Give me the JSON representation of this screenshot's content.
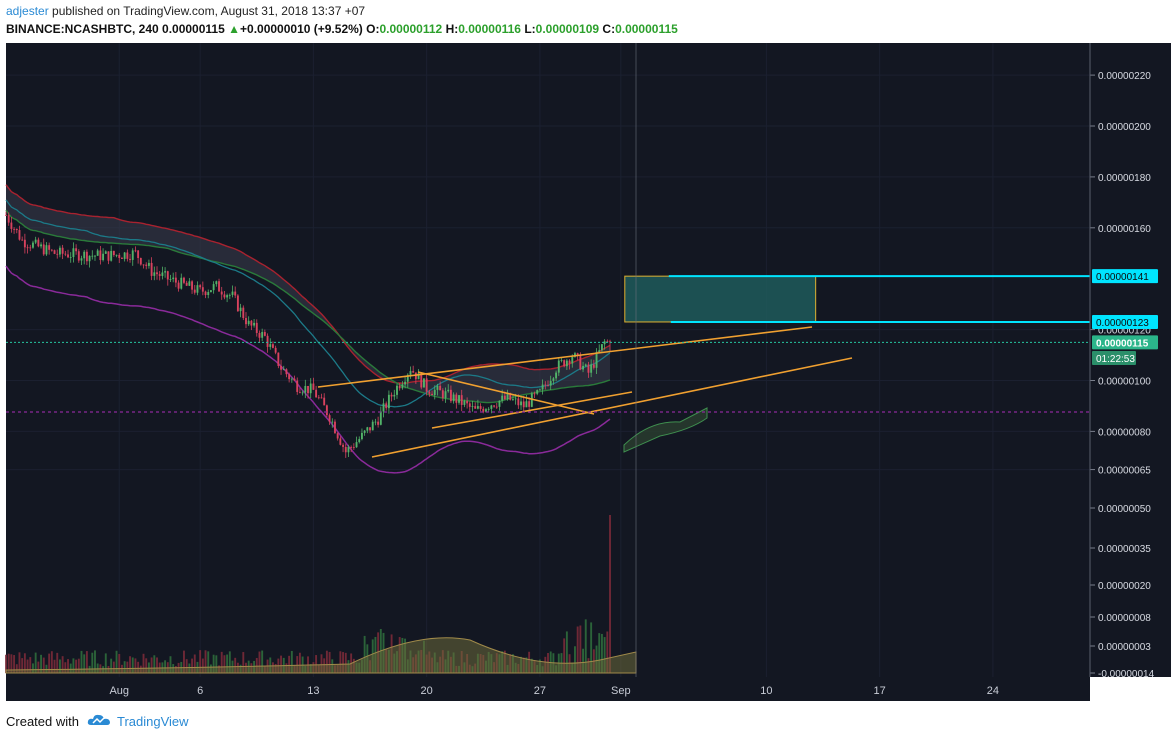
{
  "header": {
    "user": "adjester",
    "published": " published on TradingView.com, August 31, 2018 13:37 +07",
    "symbol": "BINANCE:NCASHBTC, 240",
    "last": "0.00000115",
    "change": "+0.00000010 (+9.52%)",
    "open_label": "O:",
    "open": "0.00000112",
    "high_label": "H:",
    "high": "0.00000116",
    "low_label": "L:",
    "low": "0.00000109",
    "close_label": "C:",
    "close": "0.00000115"
  },
  "footer": {
    "created": "Created with",
    "brand": "TradingView",
    "logo_icon": "tradingview-cloud-icon"
  },
  "colors": {
    "bg": "#131722",
    "up": "#3f8f4f",
    "down": "#d8425e",
    "orange": "#f0a030",
    "cyan": "#00e5ff",
    "teal": "#1e5a5a",
    "purple": "#8a2a9a"
  },
  "chart_data": {
    "type": "candlestick",
    "title": "",
    "x_ticks": [
      "Aug",
      "6",
      "13",
      "20",
      "27",
      "Sep",
      "10",
      "17",
      "24"
    ],
    "y_ticks_price": [
      "0.00000220",
      "0.00000200",
      "0.00000180",
      "0.00000160",
      "0.00000120",
      "0.00000100",
      "0.00000080",
      "0.00000065"
    ],
    "y_ticks_volume": [
      "0.00000050",
      "0.00000035",
      "0.00000020",
      "0.00000008",
      "0.00000003",
      "-0.00000014"
    ],
    "badges": [
      {
        "label": "0.00000141",
        "value": 1.41,
        "style": "cyan"
      },
      {
        "label": "0.00000123",
        "value": 1.23,
        "style": "cyan"
      },
      {
        "label": "0.00000115",
        "value": 1.15,
        "style": "green"
      },
      {
        "label": "01:22:53",
        "style": "green-small"
      }
    ],
    "x_dates": {
      "start": "2018-07-25",
      "end": "2018-09-30"
    },
    "price_keypoints": [
      [
        "2018-07-25",
        1.65
      ],
      [
        "2018-07-26",
        1.55
      ],
      [
        "2018-07-28",
        1.5
      ],
      [
        "2018-07-31",
        1.49
      ],
      [
        "2018-08-02",
        1.5
      ],
      [
        "2018-08-03",
        1.43
      ],
      [
        "2018-08-04",
        1.4
      ],
      [
        "2018-08-06",
        1.35
      ],
      [
        "2018-08-07",
        1.37
      ],
      [
        "2018-08-08",
        1.33
      ],
      [
        "2018-08-09",
        1.22
      ],
      [
        "2018-08-10",
        1.17
      ],
      [
        "2018-08-11",
        1.05
      ],
      [
        "2018-08-12",
        0.98
      ],
      [
        "2018-08-13",
        0.96
      ],
      [
        "2018-08-14",
        0.86
      ],
      [
        "2018-08-15",
        0.72
      ],
      [
        "2018-08-16",
        0.78
      ],
      [
        "2018-08-17",
        0.85
      ],
      [
        "2018-08-18",
        0.96
      ],
      [
        "2018-08-19",
        1.05
      ],
      [
        "2018-08-20",
        0.97
      ],
      [
        "2018-08-21",
        0.95
      ],
      [
        "2018-08-22",
        0.92
      ],
      [
        "2018-08-23",
        0.88
      ],
      [
        "2018-08-24",
        0.91
      ],
      [
        "2018-08-25",
        0.93
      ],
      [
        "2018-08-26",
        0.9
      ],
      [
        "2018-08-27",
        0.95
      ],
      [
        "2018-08-28",
        1.05
      ],
      [
        "2018-08-29",
        1.1
      ],
      [
        "2018-08-30",
        1.03
      ],
      [
        "2018-08-31",
        1.15
      ]
    ],
    "volume_peak": 0.48,
    "supply_zone": {
      "from": "2018-09-01",
      "to": "2018-09-17",
      "top": 1.41,
      "bottom": 1.23
    },
    "trendlines": [
      {
        "from": [
          "2018-08-10",
          0.975
        ],
        "to": [
          "2018-09-12",
          1.2
        ]
      },
      {
        "from": [
          "2018-08-15",
          0.72
        ],
        "to": [
          "2018-09-18",
          1.2
        ]
      },
      {
        "from": [
          "2018-08-17",
          1.03
        ],
        "to": [
          "2018-08-26",
          0.87
        ]
      },
      {
        "from": [
          "2018-08-17",
          1.03
        ],
        "to": [
          "2018-08-26",
          0.87
        ]
      }
    ],
    "current_price": 1.15,
    "support_level": 0.88
  }
}
